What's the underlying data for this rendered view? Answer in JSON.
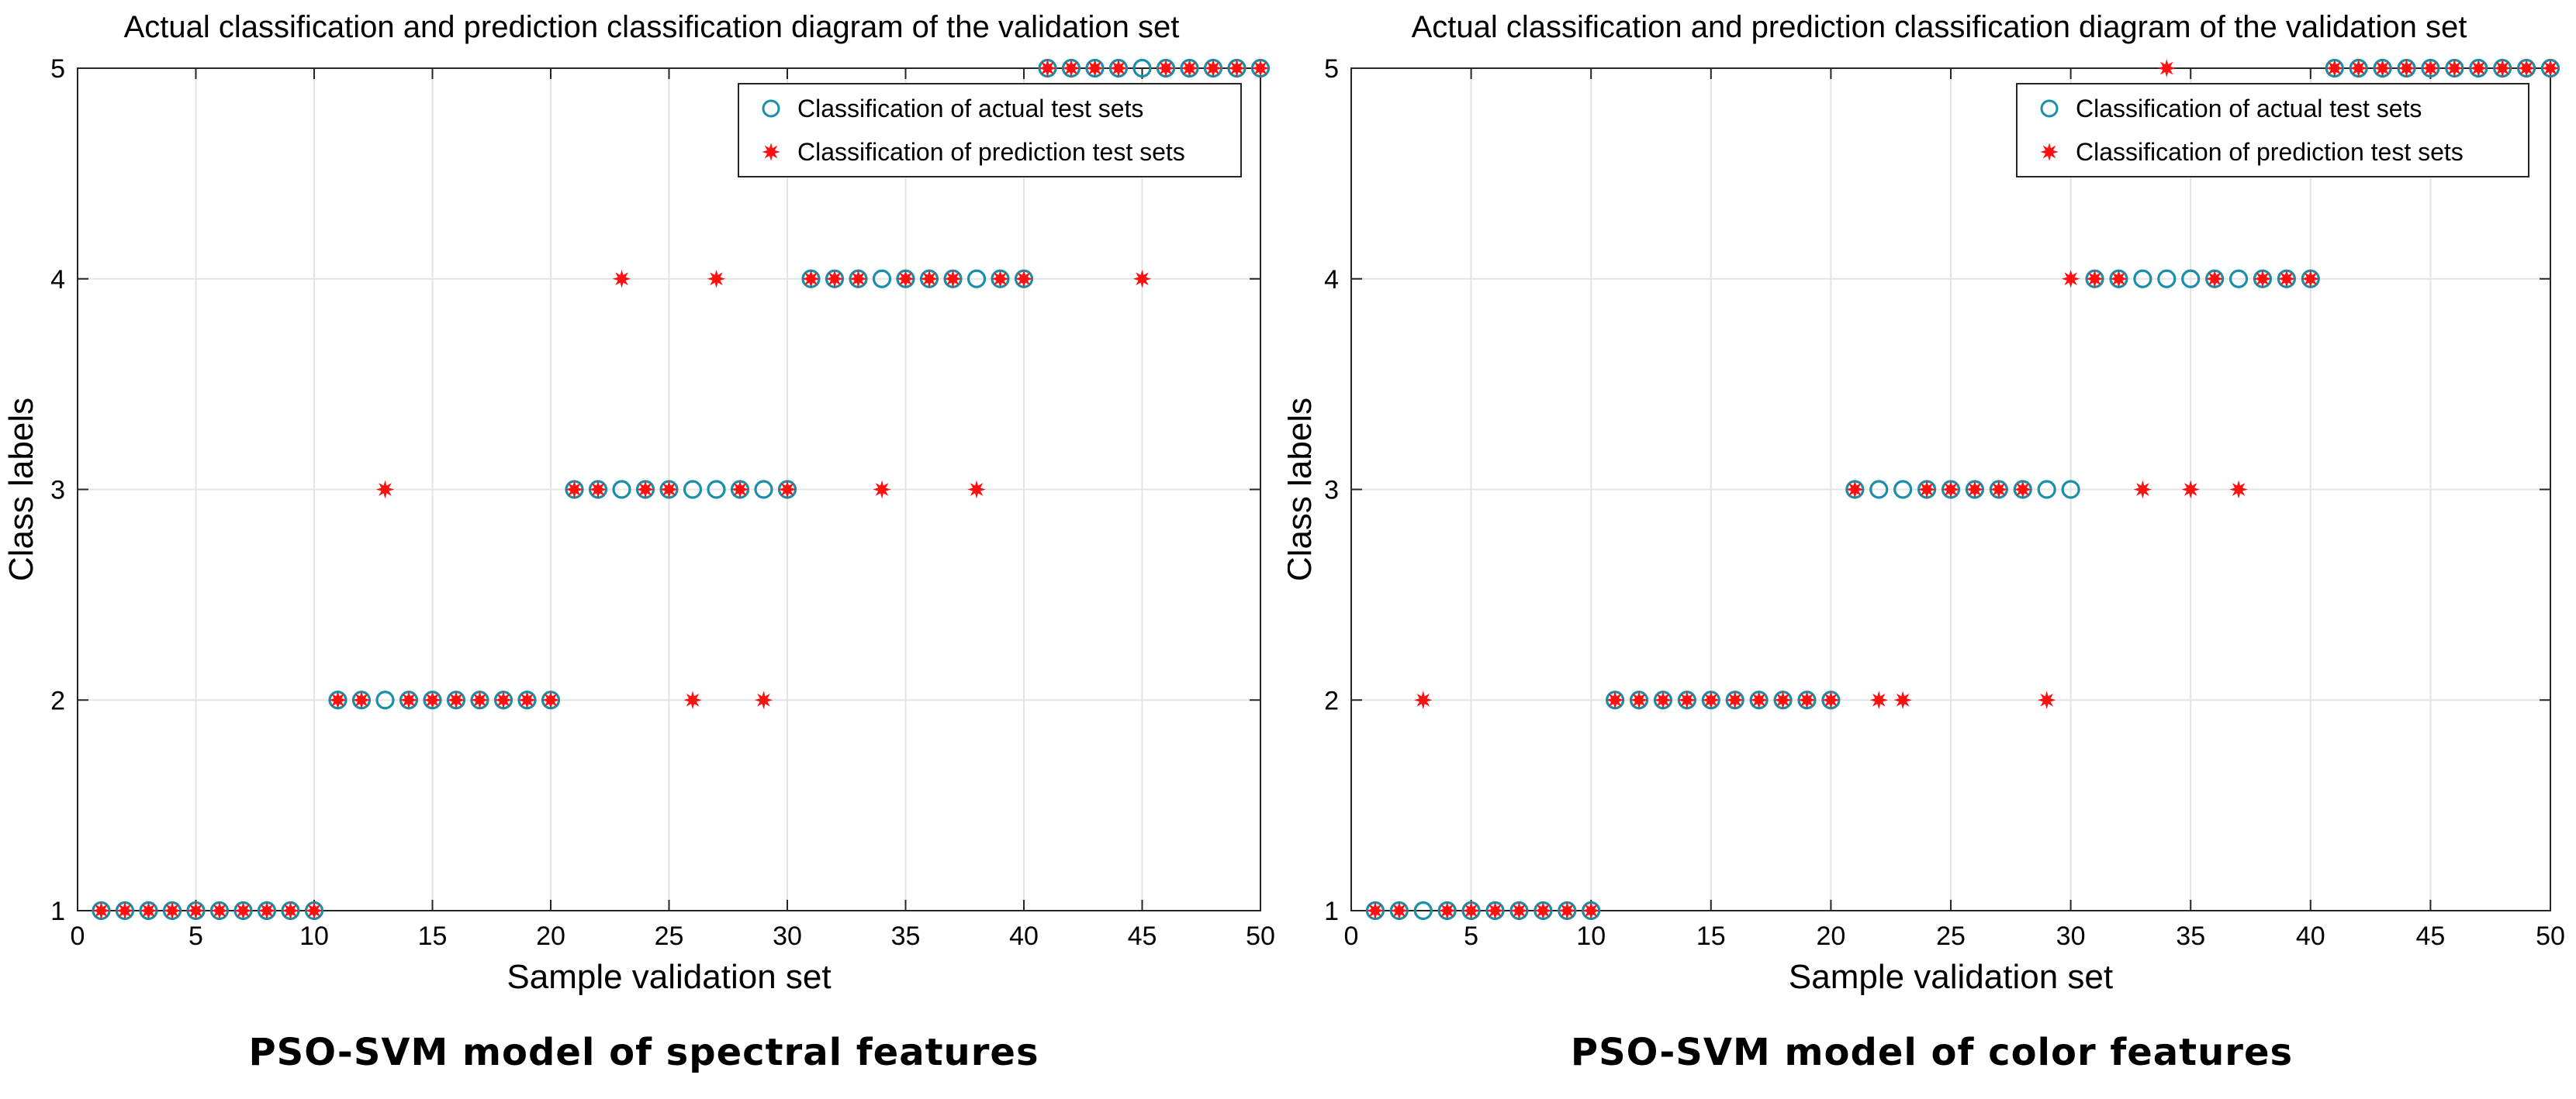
{
  "colors": {
    "actual_marker": "#1a8fa8",
    "predicted_marker": "#ff1010",
    "grid": "#e4e4e4",
    "axis": "#262626"
  },
  "chart_data": [
    {
      "type": "scatter",
      "title": "Actual classification and prediction classification diagram of the validation set",
      "xlabel": "Sample validation set",
      "ylabel": "Class labels",
      "caption": "PSO-SVM model of spectral features",
      "xlim": [
        0,
        50
      ],
      "ylim": [
        1,
        5
      ],
      "xticks": [
        "0",
        "5",
        "10",
        "15",
        "20",
        "25",
        "30",
        "35",
        "40",
        "45",
        "50"
      ],
      "yticks": [
        "1",
        "2",
        "3",
        "4",
        "5"
      ],
      "grid": true,
      "legend_position": "top-right",
      "series": [
        {
          "name": "Classification of actual test sets",
          "marker": "circle",
          "x": [
            1,
            2,
            3,
            4,
            5,
            6,
            7,
            8,
            9,
            10,
            11,
            12,
            13,
            14,
            15,
            16,
            17,
            18,
            19,
            20,
            21,
            22,
            23,
            24,
            25,
            26,
            27,
            28,
            29,
            30,
            31,
            32,
            33,
            34,
            35,
            36,
            37,
            38,
            39,
            40,
            41,
            42,
            43,
            44,
            45,
            46,
            47,
            48,
            49,
            50
          ],
          "y": [
            1,
            1,
            1,
            1,
            1,
            1,
            1,
            1,
            1,
            1,
            2,
            2,
            2,
            2,
            2,
            2,
            2,
            2,
            2,
            2,
            3,
            3,
            3,
            3,
            3,
            3,
            3,
            3,
            3,
            3,
            4,
            4,
            4,
            4,
            4,
            4,
            4,
            4,
            4,
            4,
            5,
            5,
            5,
            5,
            5,
            5,
            5,
            5,
            5,
            5
          ]
        },
        {
          "name": "Classification of prediction test sets",
          "marker": "star",
          "x": [
            1,
            2,
            3,
            4,
            5,
            6,
            7,
            8,
            9,
            10,
            11,
            12,
            13,
            14,
            15,
            16,
            17,
            18,
            19,
            20,
            21,
            22,
            23,
            24,
            25,
            26,
            27,
            28,
            29,
            30,
            31,
            32,
            33,
            34,
            35,
            36,
            37,
            38,
            39,
            40,
            41,
            42,
            43,
            44,
            45,
            46,
            47,
            48,
            49,
            50
          ],
          "y": [
            1,
            1,
            1,
            1,
            1,
            1,
            1,
            1,
            1,
            1,
            2,
            2,
            3,
            2,
            2,
            2,
            2,
            2,
            2,
            2,
            3,
            3,
            4,
            3,
            3,
            2,
            4,
            3,
            2,
            3,
            4,
            4,
            4,
            3,
            4,
            4,
            4,
            3,
            4,
            4,
            5,
            5,
            5,
            5,
            4,
            5,
            5,
            5,
            5,
            5
          ]
        }
      ]
    },
    {
      "type": "scatter",
      "title": "Actual classification and prediction classification diagram of the validation set",
      "xlabel": "Sample validation set",
      "ylabel": "Class labels",
      "caption": "PSO-SVM model of color features",
      "xlim": [
        0,
        50
      ],
      "ylim": [
        1,
        5
      ],
      "xticks": [
        "0",
        "5",
        "10",
        "15",
        "20",
        "25",
        "30",
        "35",
        "40",
        "45",
        "50"
      ],
      "yticks": [
        "1",
        "2",
        "3",
        "4",
        "5"
      ],
      "grid": true,
      "legend_position": "top-right",
      "series": [
        {
          "name": "Classification of actual test sets",
          "marker": "circle",
          "x": [
            1,
            2,
            3,
            4,
            5,
            6,
            7,
            8,
            9,
            10,
            11,
            12,
            13,
            14,
            15,
            16,
            17,
            18,
            19,
            20,
            21,
            22,
            23,
            24,
            25,
            26,
            27,
            28,
            29,
            30,
            31,
            32,
            33,
            34,
            35,
            36,
            37,
            38,
            39,
            40,
            41,
            42,
            43,
            44,
            45,
            46,
            47,
            48,
            49,
            50
          ],
          "y": [
            1,
            1,
            1,
            1,
            1,
            1,
            1,
            1,
            1,
            1,
            2,
            2,
            2,
            2,
            2,
            2,
            2,
            2,
            2,
            2,
            3,
            3,
            3,
            3,
            3,
            3,
            3,
            3,
            3,
            3,
            4,
            4,
            4,
            4,
            4,
            4,
            4,
            4,
            4,
            4,
            5,
            5,
            5,
            5,
            5,
            5,
            5,
            5,
            5,
            5
          ]
        },
        {
          "name": "Classification of prediction test sets",
          "marker": "star",
          "x": [
            1,
            2,
            3,
            4,
            5,
            6,
            7,
            8,
            9,
            10,
            11,
            12,
            13,
            14,
            15,
            16,
            17,
            18,
            19,
            20,
            21,
            22,
            23,
            24,
            25,
            26,
            27,
            28,
            29,
            30,
            31,
            32,
            33,
            34,
            35,
            36,
            37,
            38,
            39,
            40,
            41,
            42,
            43,
            44,
            45,
            46,
            47,
            48,
            49,
            50
          ],
          "y": [
            1,
            1,
            2,
            1,
            1,
            1,
            1,
            1,
            1,
            1,
            2,
            2,
            2,
            2,
            2,
            2,
            2,
            2,
            2,
            2,
            3,
            2,
            2,
            3,
            3,
            3,
            3,
            3,
            2,
            4,
            4,
            4,
            3,
            5,
            3,
            4,
            3,
            4,
            4,
            4,
            5,
            5,
            5,
            5,
            5,
            5,
            5,
            5,
            5,
            5
          ]
        }
      ]
    }
  ]
}
